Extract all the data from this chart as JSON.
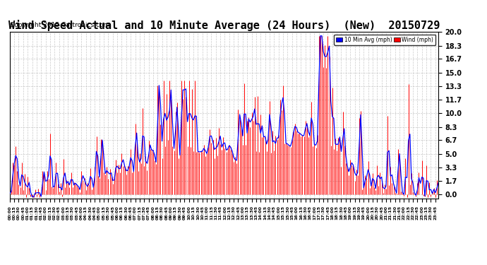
{
  "title": "Wind Speed Actual and 10 Minute Average (24 Hours)  (New)  20150729",
  "copyright": "Copyright 2015 Cartronics.com",
  "yticks": [
    0.0,
    1.7,
    3.3,
    5.0,
    6.7,
    8.3,
    10.0,
    11.7,
    13.3,
    15.0,
    16.7,
    18.3,
    20.0
  ],
  "ylim": [
    -0.5,
    20.0
  ],
  "wind_color": "#FF0000",
  "avg_color": "#0000FF",
  "background_color": "#FFFFFF",
  "grid_color": "#BBBBBB",
  "title_fontsize": 11,
  "legend_labels": [
    "10 Min Avg (mph)",
    "Wind (mph)"
  ],
  "legend_colors": [
    "#0000FF",
    "#FF0000"
  ],
  "n_points": 288,
  "seed": 12345
}
